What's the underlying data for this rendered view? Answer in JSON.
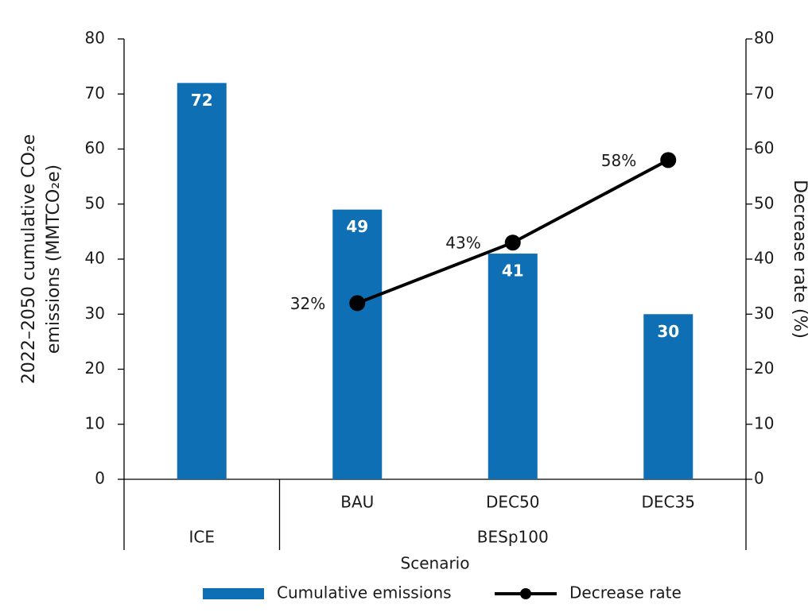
{
  "chart_data": {
    "type": "bar",
    "categories": [
      null,
      "BAU",
      "DEC50",
      "DEC35"
    ],
    "groups": [
      {
        "name": "ICE",
        "size": 1
      },
      {
        "name": "BESp100",
        "size": 3
      }
    ],
    "x_label": "Scenario",
    "y_label": [
      "2022–2050 cumulative CO₂e",
      "emissions (MMTCO₂e)"
    ],
    "y2_label": "Decrease rate (%)",
    "ylim": [
      0,
      80
    ],
    "yticks": [
      0,
      10,
      20,
      30,
      40,
      50,
      60,
      70,
      80
    ],
    "y2lim": [
      0,
      80
    ],
    "y2ticks": [
      0,
      10,
      20,
      30,
      40,
      50,
      60,
      70,
      80
    ],
    "series": [
      {
        "name": "Cumulative emissions",
        "type": "bar",
        "color": "#0f6fb5",
        "values": [
          72,
          49,
          41,
          30
        ]
      },
      {
        "name": "Decrease rate",
        "type": "line",
        "axis": "y2",
        "color": "#000000",
        "values": [
          null,
          32,
          43,
          58
        ],
        "value_labels": [
          null,
          "32%",
          "43%",
          "58%"
        ]
      }
    ]
  }
}
